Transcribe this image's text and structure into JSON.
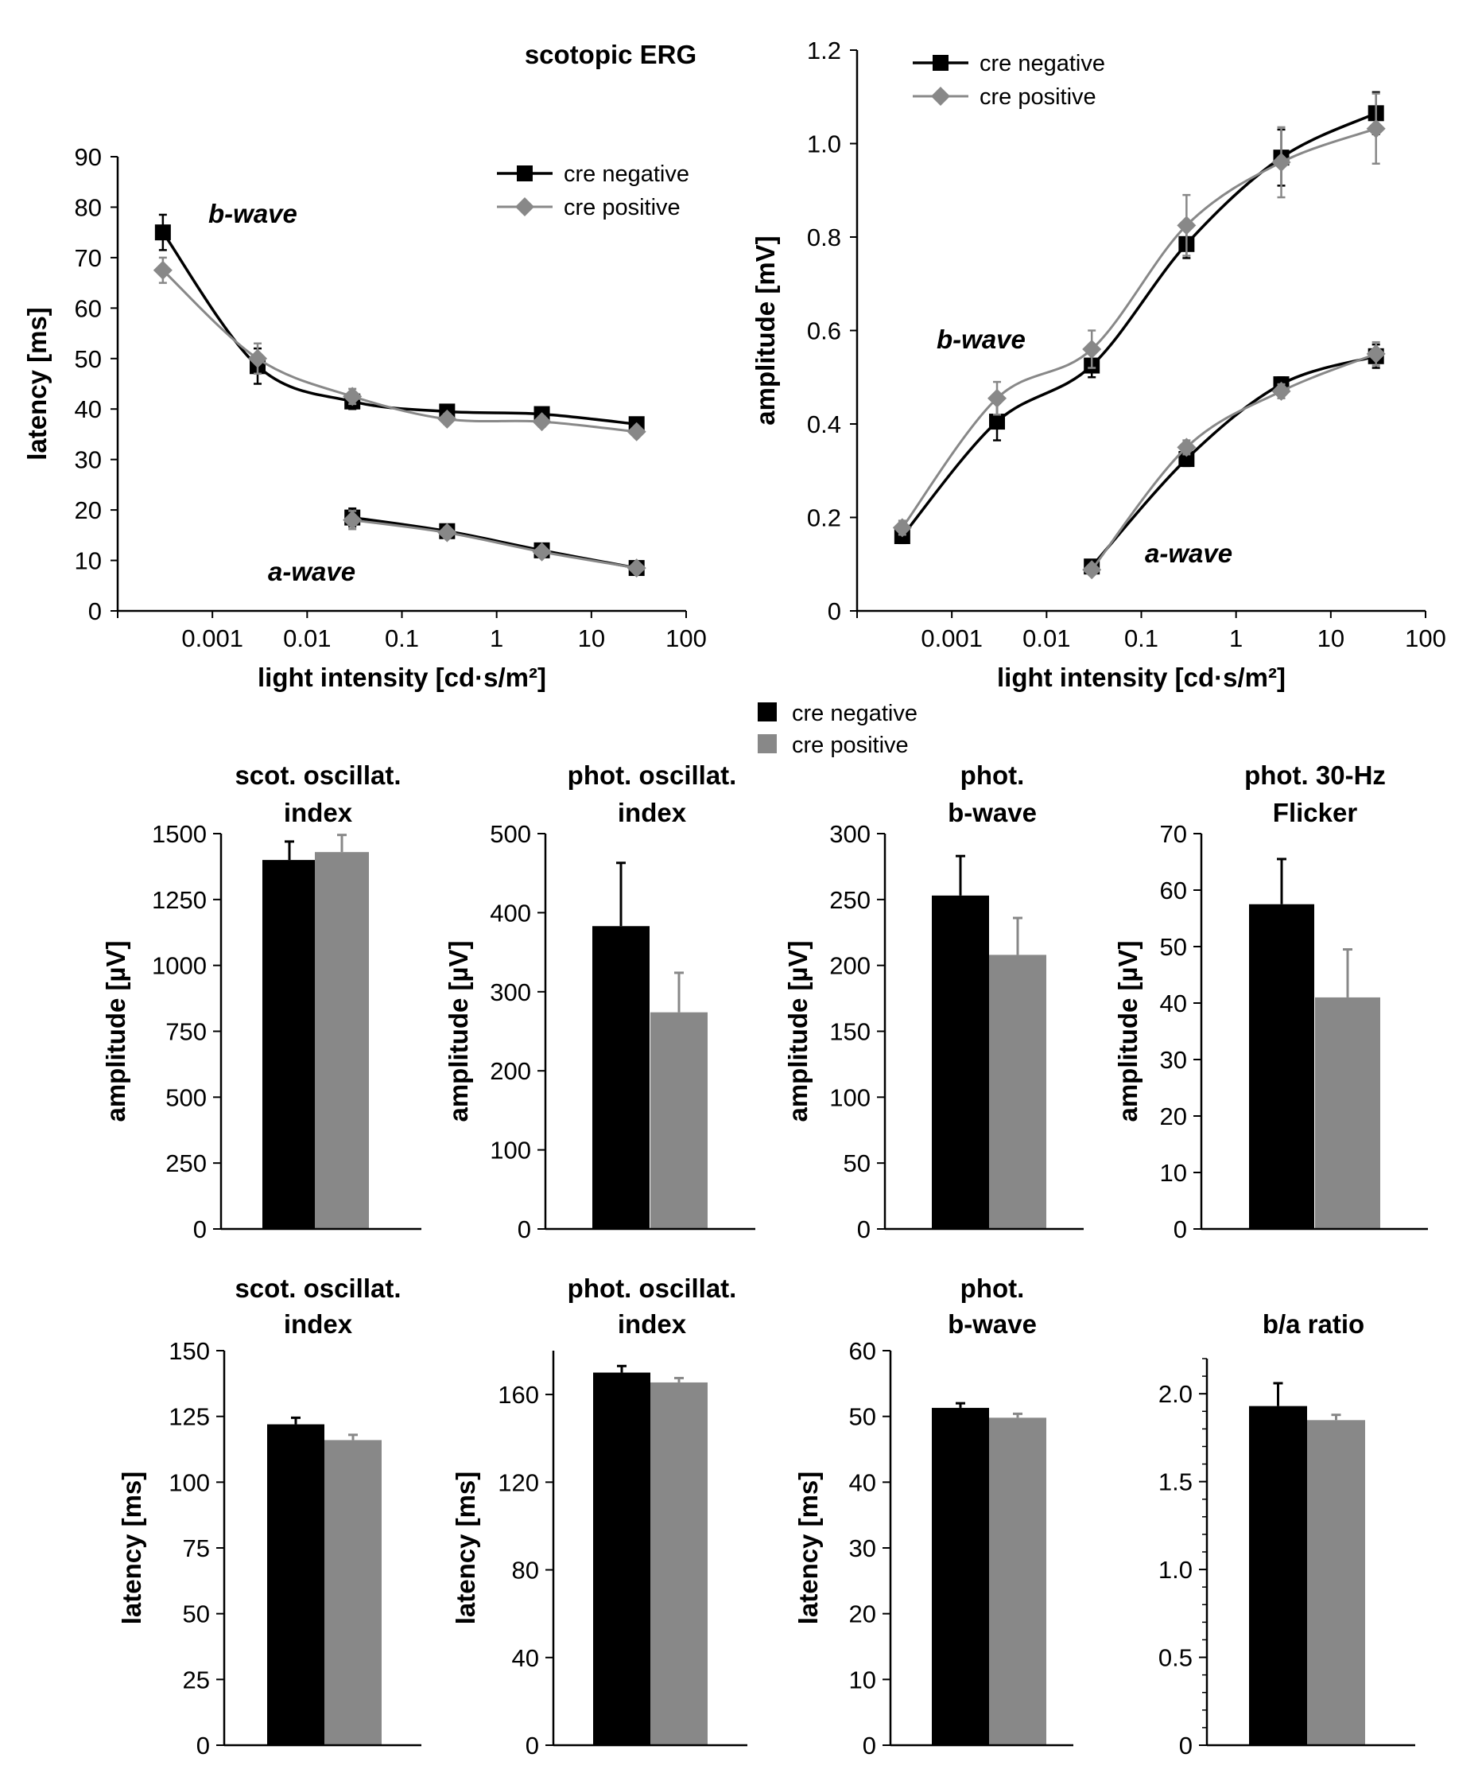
{
  "figure_title": "scotopic ERG",
  "colors": {
    "cre_negative": "#000000",
    "cre_positive": "#888888"
  },
  "legend": {
    "cre_negative": "cre negative",
    "cre_positive": "cre positive"
  },
  "chart_data": [
    {
      "type": "line",
      "id": "latency",
      "xlabel": "light intensity [cd·s/m²]",
      "ylabel": "latency [ms]",
      "x_scale": "log",
      "xlim": [
        0.0001,
        100
      ],
      "ylim": [
        0,
        90
      ],
      "x_tick_values": [
        0.001,
        0.01,
        0.1,
        1,
        10,
        100
      ],
      "x_tick_labels": [
        "0.001",
        "0.01",
        "0.1",
        "1",
        "10",
        "100"
      ],
      "y_ticks": [
        0,
        10,
        20,
        30,
        40,
        50,
        60,
        70,
        80,
        90
      ],
      "legend_position": "top-right",
      "annotations": [
        "b-wave",
        "a-wave"
      ],
      "series": [
        {
          "name": "cre negative",
          "wave": "b-wave",
          "x": [
            0.0003,
            0.003,
            0.03,
            0.3,
            3,
            30
          ],
          "y": [
            75,
            48.5,
            41.5,
            39.5,
            39,
            37
          ],
          "err": [
            3.5,
            3.5,
            1.5,
            1,
            1,
            0.8
          ]
        },
        {
          "name": "cre positive",
          "wave": "b-wave",
          "x": [
            0.0003,
            0.003,
            0.03,
            0.3,
            3,
            30
          ],
          "y": [
            67.5,
            50,
            42.5,
            38,
            37.5,
            35.5
          ],
          "err": [
            2.5,
            3,
            1.5,
            1,
            1,
            0.8
          ]
        },
        {
          "name": "cre negative",
          "wave": "a-wave",
          "x": [
            0.03,
            0.3,
            3,
            30
          ],
          "y": [
            18.5,
            15.8,
            12,
            8.5
          ],
          "err": [
            1.8,
            1,
            0.8,
            0.8
          ]
        },
        {
          "name": "cre positive",
          "wave": "a-wave",
          "x": [
            0.03,
            0.3,
            3,
            30
          ],
          "y": [
            18,
            15.5,
            11.7,
            8.5
          ],
          "err": [
            1.8,
            1,
            0.8,
            0.8
          ]
        }
      ]
    },
    {
      "type": "line",
      "id": "amplitude",
      "xlabel": "light intensity [cd·s/m²]",
      "ylabel": "amplitude [mV]",
      "x_scale": "log",
      "xlim": [
        0.0001,
        100
      ],
      "ylim": [
        0,
        1.2
      ],
      "x_tick_values": [
        0.001,
        0.01,
        0.1,
        1,
        10,
        100
      ],
      "x_tick_labels": [
        "0.001",
        "0.01",
        "0.1",
        "1",
        "10",
        "100"
      ],
      "y_ticks": [
        0,
        0.2,
        0.4,
        0.6,
        0.8,
        1.0,
        1.2
      ],
      "y_tick_labels": [
        "0",
        "0.2",
        "0.4",
        "0.6",
        "0.8",
        "1.0",
        "1.2"
      ],
      "legend_position": "top-left",
      "annotations": [
        "b-wave",
        "a-wave"
      ],
      "series": [
        {
          "name": "cre negative",
          "wave": "b-wave",
          "x": [
            0.0003,
            0.003,
            0.03,
            0.3,
            3,
            30
          ],
          "y": [
            0.16,
            0.405,
            0.525,
            0.785,
            0.97,
            1.065
          ],
          "err": [
            0.015,
            0.04,
            0.025,
            0.03,
            0.06,
            0.045
          ]
        },
        {
          "name": "cre positive",
          "wave": "b-wave",
          "x": [
            0.0003,
            0.003,
            0.03,
            0.3,
            3,
            30
          ],
          "y": [
            0.178,
            0.455,
            0.56,
            0.825,
            0.96,
            1.032
          ],
          "err": [
            0.015,
            0.035,
            0.04,
            0.065,
            0.075,
            0.075
          ]
        },
        {
          "name": "cre negative",
          "wave": "a-wave",
          "x": [
            0.03,
            0.3,
            3,
            30
          ],
          "y": [
            0.095,
            0.325,
            0.485,
            0.545
          ],
          "err": [
            0.01,
            0.015,
            0.015,
            0.025
          ]
        },
        {
          "name": "cre positive",
          "wave": "a-wave",
          "x": [
            0.03,
            0.3,
            3,
            30
          ],
          "y": [
            0.088,
            0.35,
            0.47,
            0.55
          ],
          "err": [
            0.01,
            0.015,
            0.015,
            0.025
          ]
        }
      ]
    },
    {
      "type": "bar",
      "id": "scot-osc-amp",
      "title": [
        "scot. oscillat.",
        "index"
      ],
      "ylabel": "amplitude [µV]",
      "ylim": [
        0,
        1500
      ],
      "y_ticks": [
        0,
        250,
        500,
        750,
        1000,
        1250,
        1500
      ],
      "categories": [
        "cre negative",
        "cre positive"
      ],
      "values": [
        1400,
        1430
      ],
      "err": [
        70,
        65
      ]
    },
    {
      "type": "bar",
      "id": "phot-osc-amp",
      "title": [
        "phot. oscillat.",
        "index"
      ],
      "ylabel": "amplitude [µV]",
      "ylim": [
        0,
        500
      ],
      "y_ticks": [
        0,
        100,
        200,
        300,
        400,
        500
      ],
      "categories": [
        "cre negative",
        "cre positive"
      ],
      "values": [
        383,
        274
      ],
      "err": [
        80,
        50
      ]
    },
    {
      "type": "bar",
      "id": "phot-bwave-amp",
      "title": [
        "phot.",
        "b-wave"
      ],
      "ylabel": "amplitude [µV]",
      "ylim": [
        0,
        300
      ],
      "y_ticks": [
        0,
        50,
        100,
        150,
        200,
        250,
        300
      ],
      "categories": [
        "cre negative",
        "cre positive"
      ],
      "values": [
        253,
        208
      ],
      "err": [
        30,
        28
      ]
    },
    {
      "type": "bar",
      "id": "phot-flicker-amp",
      "title": [
        "phot. 30-Hz",
        "Flicker"
      ],
      "ylabel": "amplitude [µV]",
      "ylim": [
        0,
        70
      ],
      "y_ticks": [
        0,
        10,
        20,
        30,
        40,
        50,
        60,
        70
      ],
      "categories": [
        "cre negative",
        "cre positive"
      ],
      "values": [
        57.5,
        41
      ],
      "err": [
        8,
        8.5
      ]
    },
    {
      "type": "bar",
      "id": "scot-osc-lat",
      "title": [
        "scot. oscillat.",
        "index"
      ],
      "ylabel": "latency [ms]",
      "ylim": [
        0,
        150
      ],
      "y_ticks": [
        0,
        25,
        50,
        75,
        100,
        125,
        150
      ],
      "categories": [
        "cre negative",
        "cre positive"
      ],
      "values": [
        122,
        116
      ],
      "err": [
        2.5,
        2
      ]
    },
    {
      "type": "bar",
      "id": "phot-osc-lat",
      "title": [
        "phot. oscillat.",
        "index"
      ],
      "ylabel": "latency [ms]",
      "ylim": [
        0,
        180
      ],
      "y_ticks": [
        0,
        40,
        80,
        120,
        160
      ],
      "categories": [
        "cre negative",
        "cre positive"
      ],
      "values": [
        170,
        165.5
      ],
      "err": [
        3,
        2
      ]
    },
    {
      "type": "bar",
      "id": "phot-bwave-lat",
      "title": [
        "phot.",
        "b-wave"
      ],
      "ylabel": "latency [ms]",
      "ylim": [
        0,
        60
      ],
      "y_ticks": [
        0,
        10,
        20,
        30,
        40,
        50,
        60
      ],
      "categories": [
        "cre negative",
        "cre positive"
      ],
      "values": [
        51.3,
        49.8
      ],
      "err": [
        0.7,
        0.6
      ]
    },
    {
      "type": "bar",
      "id": "ba-ratio",
      "title": [
        "b/a ratio"
      ],
      "ylabel": "",
      "ylim": [
        0,
        2.2
      ],
      "y_ticks": [
        0,
        0.5,
        1.0,
        1.5,
        2.0
      ],
      "y_tick_labels": [
        "0",
        "0.5",
        "1.0",
        "1.5",
        "2.0"
      ],
      "minor_ticks": true,
      "categories": [
        "cre negative",
        "cre positive"
      ],
      "values": [
        1.93,
        1.85
      ],
      "err": [
        0.13,
        0.03
      ]
    }
  ]
}
